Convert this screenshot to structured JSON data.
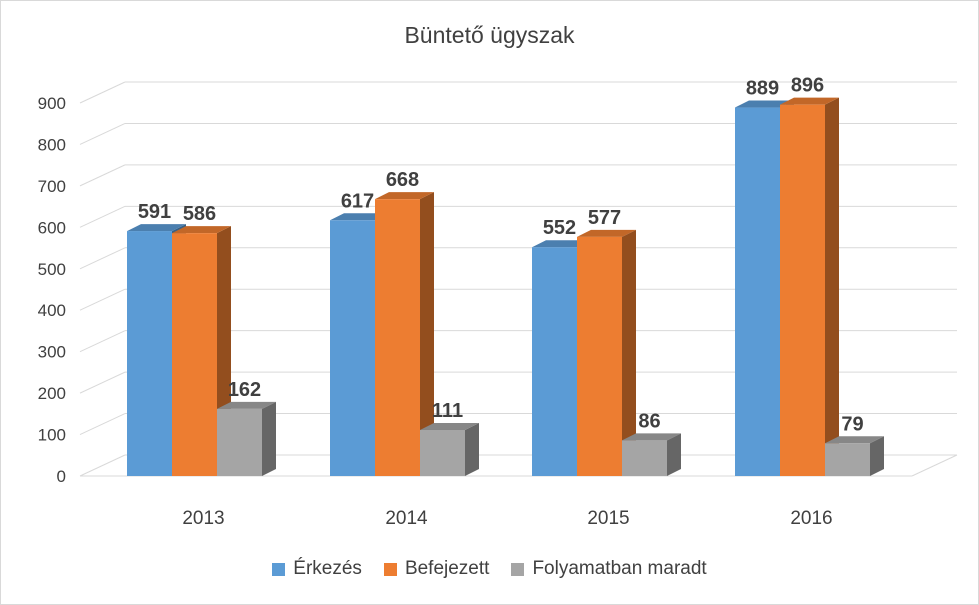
{
  "chart_data": {
    "type": "bar",
    "title": "Büntető ügyszak",
    "categories": [
      "2013",
      "2014",
      "2015",
      "2016"
    ],
    "series": [
      {
        "name": "Érkezés",
        "values": [
          591,
          617,
          552,
          889
        ],
        "color": "#5b9bd5"
      },
      {
        "name": "Befejezett",
        "values": [
          586,
          668,
          577,
          896
        ],
        "color": "#ed7d31"
      },
      {
        "name": "Folyamatban maradt",
        "values": [
          162,
          111,
          86,
          79
        ],
        "color": "#a5a5a5"
      }
    ],
    "yticks": [
      0,
      100,
      200,
      300,
      400,
      500,
      600,
      700,
      800,
      900
    ],
    "ylim": [
      0,
      900
    ],
    "grid": true,
    "legend_position": "bottom",
    "style": "3d-clustered-column"
  }
}
